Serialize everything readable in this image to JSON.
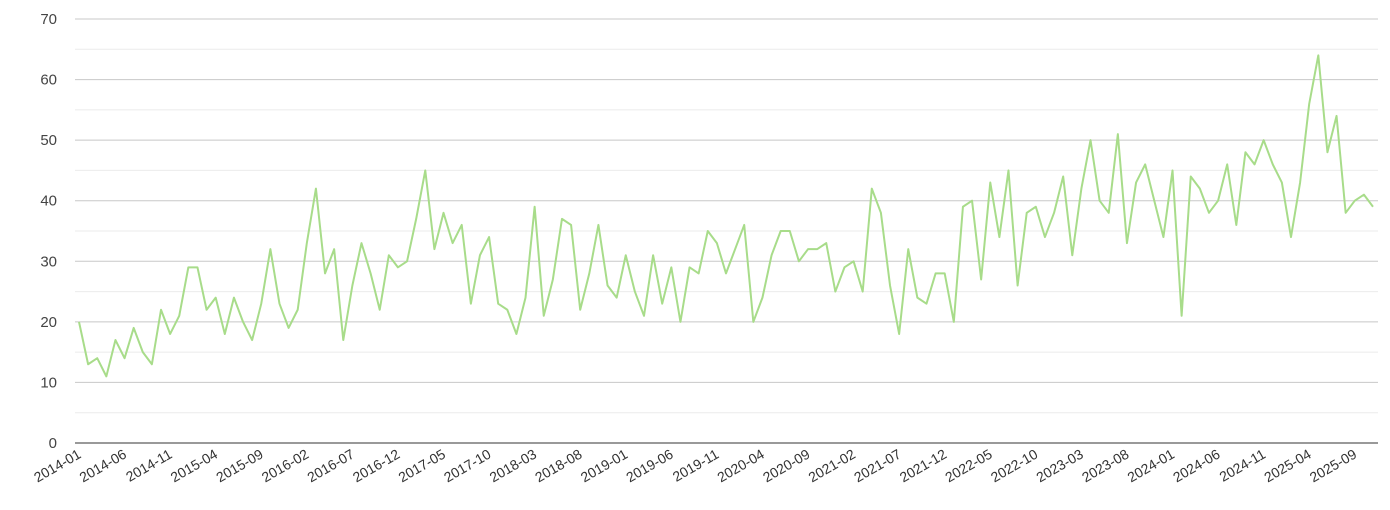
{
  "chart_data": {
    "type": "line",
    "title": "",
    "xlabel": "",
    "ylabel": "",
    "ylim": [
      0,
      70
    ],
    "y_ticks": [
      0,
      10,
      20,
      30,
      40,
      50,
      60,
      70
    ],
    "grid": true,
    "legend": "none",
    "colors": {
      "line": "#a8dc8a",
      "grid_major": "#c8c8c8",
      "grid_minor": "#ebebeb",
      "axis": "#333333"
    },
    "x_tick_labels": [
      "2014-01",
      "2014-06",
      "2014-11",
      "2015-04",
      "2015-09",
      "2016-02",
      "2016-07",
      "2016-12",
      "2017-05",
      "2017-10",
      "2018-03",
      "2018-08",
      "2019-01",
      "2019-06",
      "2019-11",
      "2020-04",
      "2020-09",
      "2021-02",
      "2021-07",
      "2021-12",
      "2022-05",
      "2022-10",
      "2023-03",
      "2023-08",
      "2024-01",
      "2024-06",
      "2024-11",
      "2025-04",
      "2025-09"
    ],
    "x_start": "2014-01",
    "series": [
      {
        "name": "",
        "values": [
          20,
          13,
          14,
          11,
          17,
          14,
          19,
          15,
          13,
          22,
          18,
          21,
          29,
          29,
          22,
          24,
          18,
          24,
          20,
          17,
          23,
          32,
          23,
          19,
          22,
          33,
          42,
          28,
          32,
          17,
          26,
          33,
          28,
          22,
          31,
          29,
          30,
          37,
          45,
          32,
          38,
          33,
          36,
          23,
          31,
          34,
          23,
          22,
          18,
          24,
          39,
          21,
          27,
          37,
          36,
          22,
          28,
          36,
          26,
          24,
          31,
          25,
          21,
          31,
          23,
          29,
          20,
          29,
          28,
          35,
          33,
          28,
          32,
          36,
          20,
          24,
          31,
          35,
          35,
          30,
          32,
          32,
          33,
          25,
          29,
          30,
          25,
          42,
          38,
          26,
          18,
          32,
          24,
          23,
          28,
          28,
          20,
          39,
          40,
          27,
          43,
          34,
          45,
          26,
          38,
          39,
          34,
          38,
          44,
          31,
          42,
          50,
          40,
          38,
          51,
          33,
          43,
          46,
          40,
          34,
          45,
          21,
          44,
          42,
          38,
          40,
          46,
          36,
          48,
          46,
          50,
          46,
          43,
          34,
          43,
          56,
          64,
          48,
          54,
          38,
          40,
          41,
          39
        ]
      }
    ]
  }
}
